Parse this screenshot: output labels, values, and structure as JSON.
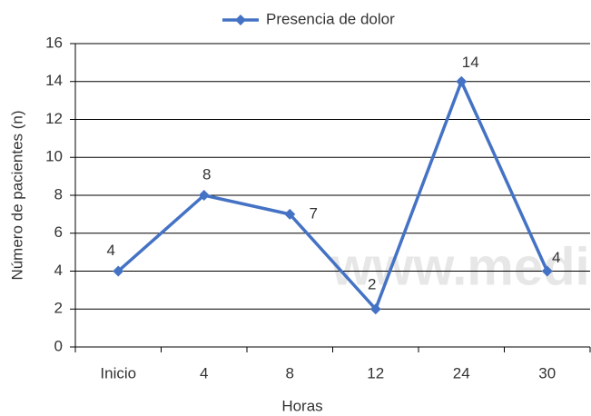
{
  "chart_data": {
    "type": "line",
    "legend_position": "top",
    "xlabel": "Horas",
    "ylabel": "Número de pacientes (n)",
    "categories": [
      "Inicio",
      "4",
      "8",
      "12",
      "24",
      "30"
    ],
    "series": [
      {
        "name": "Presencia de dolor",
        "color": "#4472c4",
        "values": [
          4,
          8,
          7,
          2,
          14,
          4
        ]
      }
    ],
    "ylim": [
      0,
      16
    ],
    "yticks": [
      0,
      2,
      4,
      6,
      8,
      10,
      12,
      14,
      16
    ],
    "grid": true,
    "watermark": "www.medig"
  }
}
